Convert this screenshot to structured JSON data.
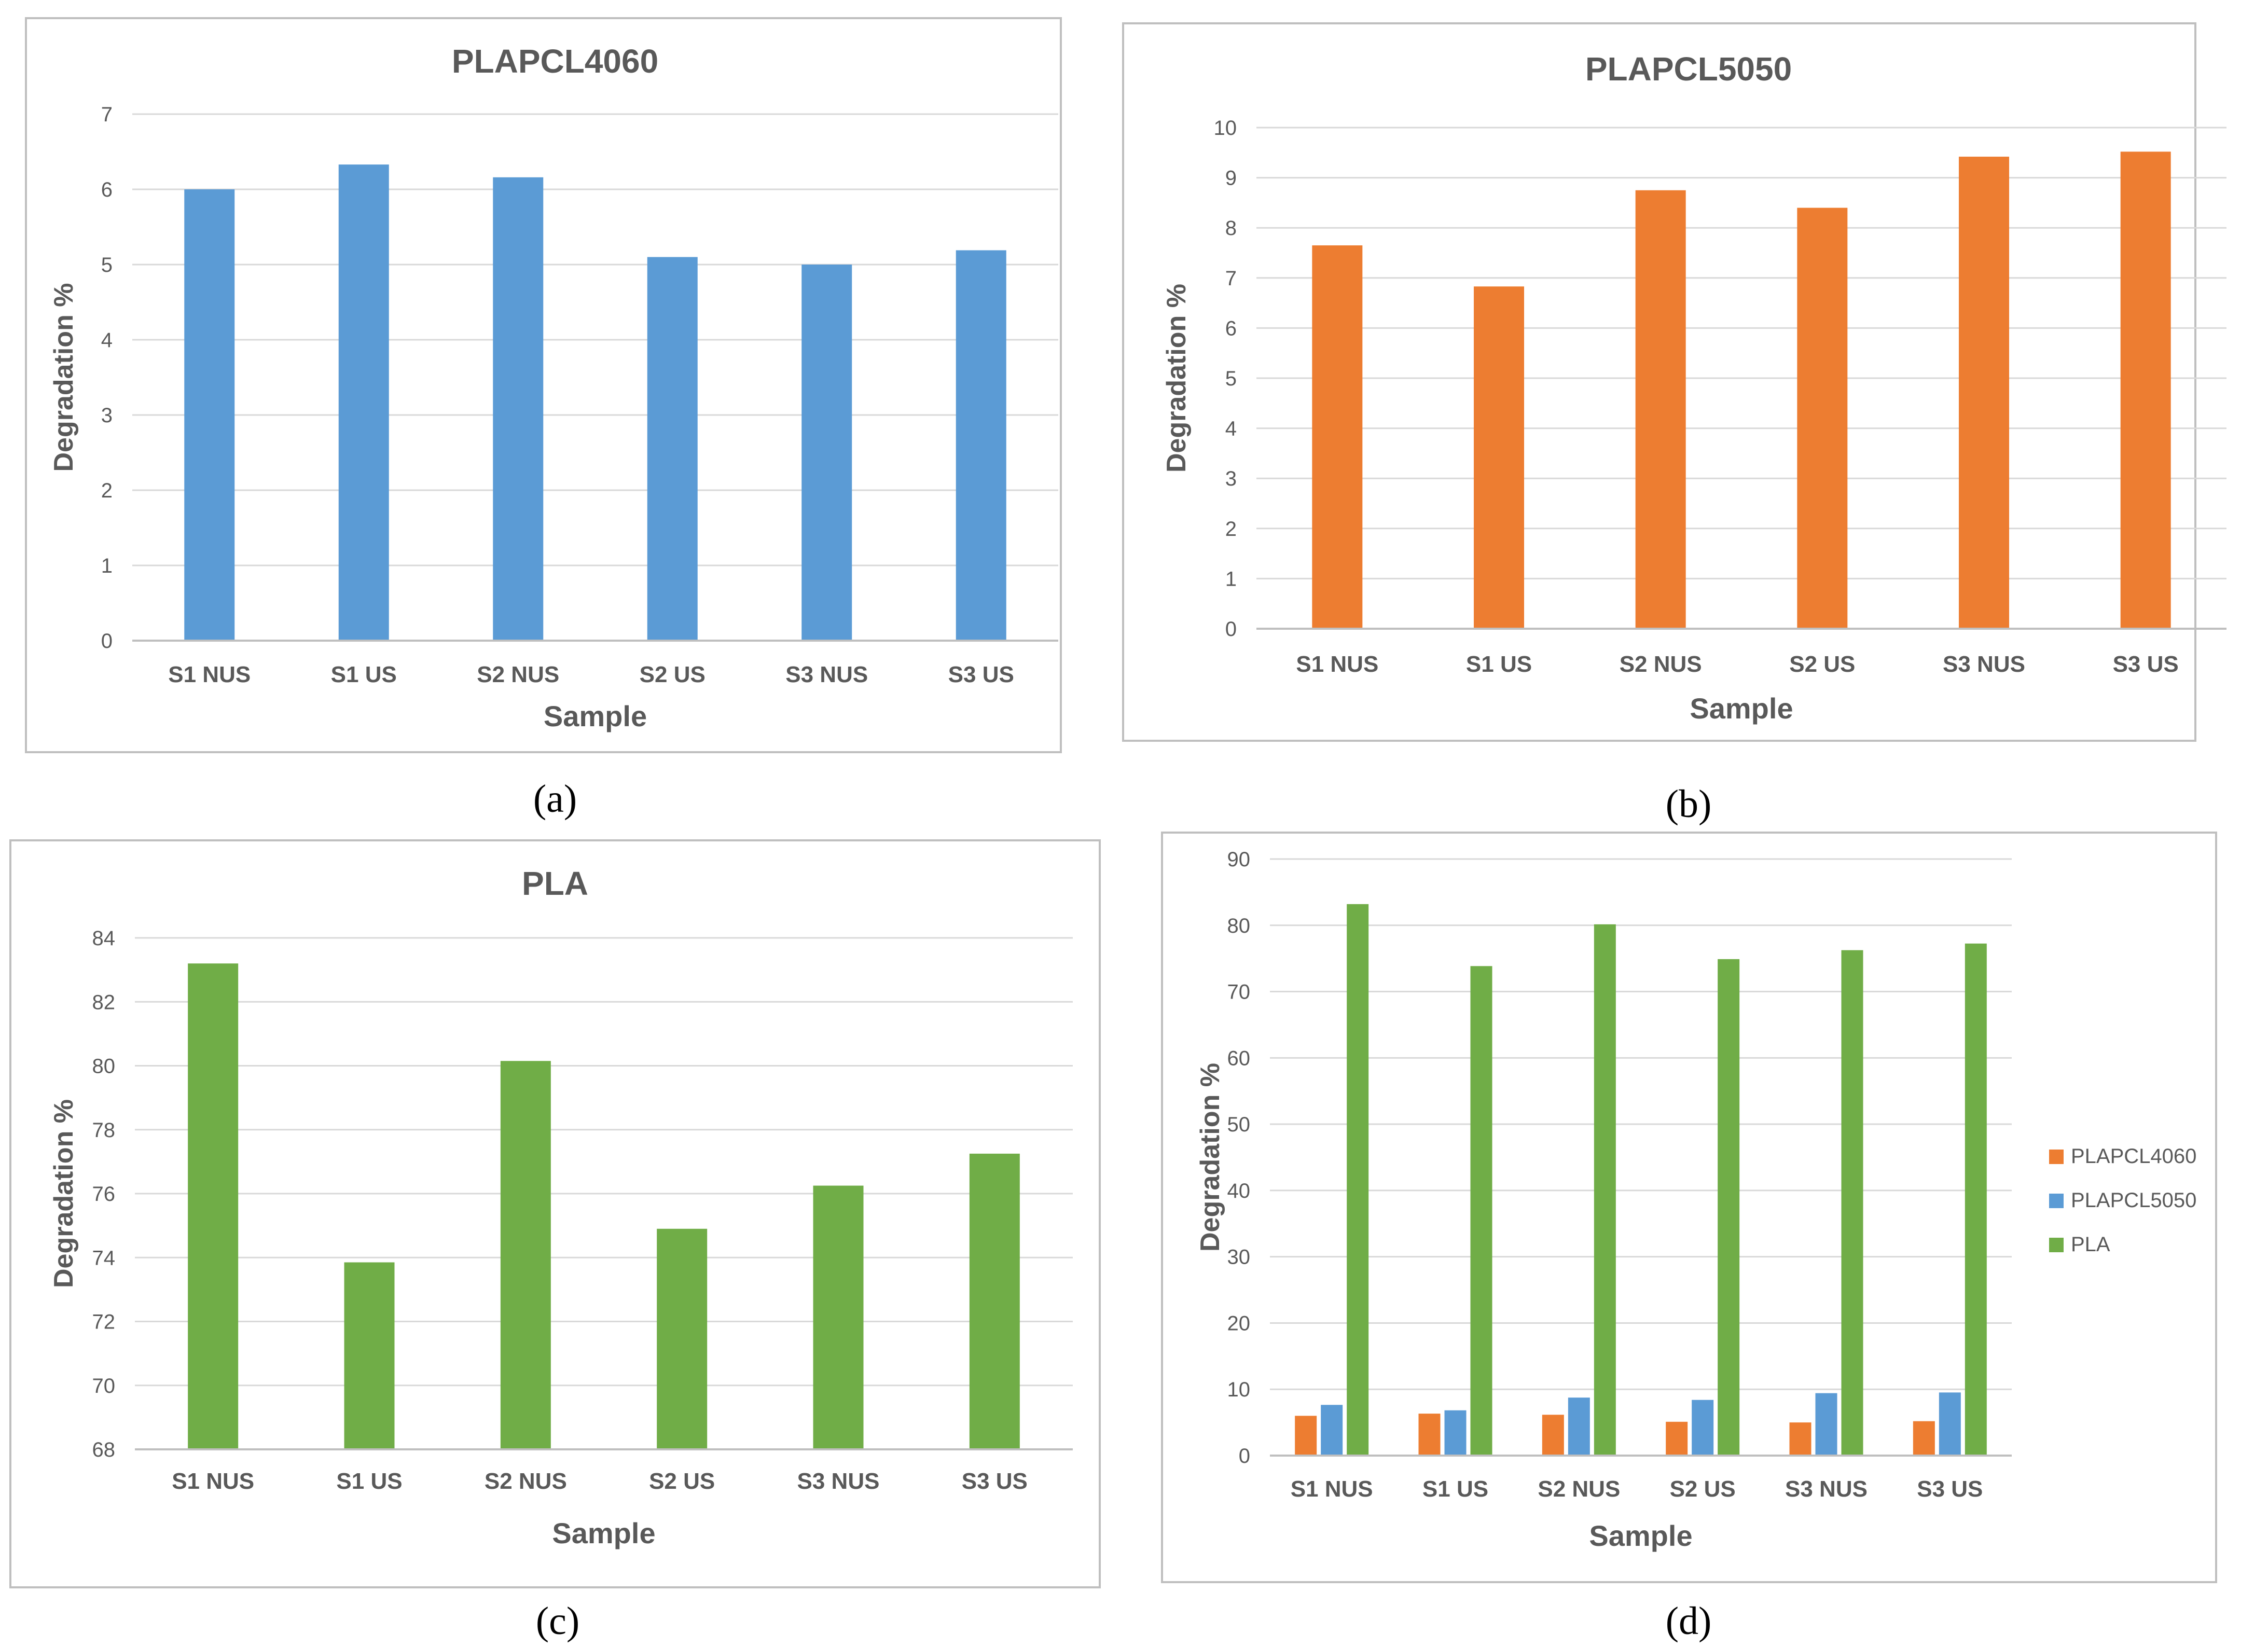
{
  "chart_data": [
    {
      "type": "bar",
      "title": "PLAPCL4060",
      "caption": "(a)",
      "xlabel": "Sample",
      "ylabel": "Degradation %",
      "categories": [
        "S1 NUS",
        "S1 US",
        "S2 NUS",
        "S2 US",
        "S3 NUS",
        "S3 US"
      ],
      "series": [
        {
          "name": "PLAPCL4060",
          "values": [
            6.0,
            6.33,
            6.16,
            5.1,
            5.0,
            5.19
          ]
        }
      ],
      "ylim": [
        0,
        7
      ],
      "yticks": [
        0,
        1,
        2,
        3,
        4,
        5,
        6,
        7
      ],
      "colors": [
        "#5b9bd5"
      ],
      "grid": true,
      "legend": null
    },
    {
      "type": "bar",
      "title": "PLAPCL5050",
      "caption": "(b)",
      "xlabel": "Sample",
      "ylabel": "Degradation %",
      "categories": [
        "S1 NUS",
        "S1 US",
        "S2 NUS",
        "S2 US",
        "S3 NUS",
        "S3 US"
      ],
      "series": [
        {
          "name": "PLAPCL5050",
          "values": [
            7.65,
            6.83,
            8.75,
            8.4,
            9.42,
            9.52
          ]
        }
      ],
      "ylim": [
        0,
        10
      ],
      "yticks": [
        0,
        1,
        2,
        3,
        4,
        5,
        6,
        7,
        8,
        9,
        10
      ],
      "colors": [
        "#ed7d31"
      ],
      "grid": true,
      "legend": null
    },
    {
      "type": "bar",
      "title": "PLA",
      "caption": "(c)",
      "xlabel": "Sample",
      "ylabel": "Degradation %",
      "categories": [
        "S1 NUS",
        "S1 US",
        "S2 NUS",
        "S2 US",
        "S3 NUS",
        "S3 US"
      ],
      "series": [
        {
          "name": "PLA",
          "values": [
            83.2,
            73.85,
            80.15,
            74.9,
            76.25,
            77.25
          ]
        }
      ],
      "ylim": [
        68,
        84
      ],
      "yticks": [
        68,
        70,
        72,
        74,
        76,
        78,
        80,
        82,
        84
      ],
      "colors": [
        "#70ad47"
      ],
      "grid": true,
      "legend": null
    },
    {
      "type": "bar",
      "title": "",
      "caption": "(d)",
      "xlabel": "Sample",
      "ylabel": "Degradation %",
      "categories": [
        "S1 NUS",
        "S1 US",
        "S2 NUS",
        "S2 US",
        "S3 NUS",
        "S3 US"
      ],
      "series": [
        {
          "name": "PLAPCL4060",
          "values": [
            6.0,
            6.33,
            6.16,
            5.1,
            5.0,
            5.19
          ]
        },
        {
          "name": "PLAPCL5050",
          "values": [
            7.65,
            6.83,
            8.75,
            8.4,
            9.42,
            9.52
          ]
        },
        {
          "name": "PLA",
          "values": [
            83.2,
            73.85,
            80.15,
            74.9,
            76.25,
            77.25
          ]
        }
      ],
      "ylim": [
        0,
        90
      ],
      "yticks": [
        0,
        10,
        20,
        30,
        40,
        50,
        60,
        70,
        80,
        90
      ],
      "colors": [
        "#ed7d31",
        "#5b9bd5",
        "#70ad47"
      ],
      "grid": true,
      "legend": "right"
    }
  ]
}
